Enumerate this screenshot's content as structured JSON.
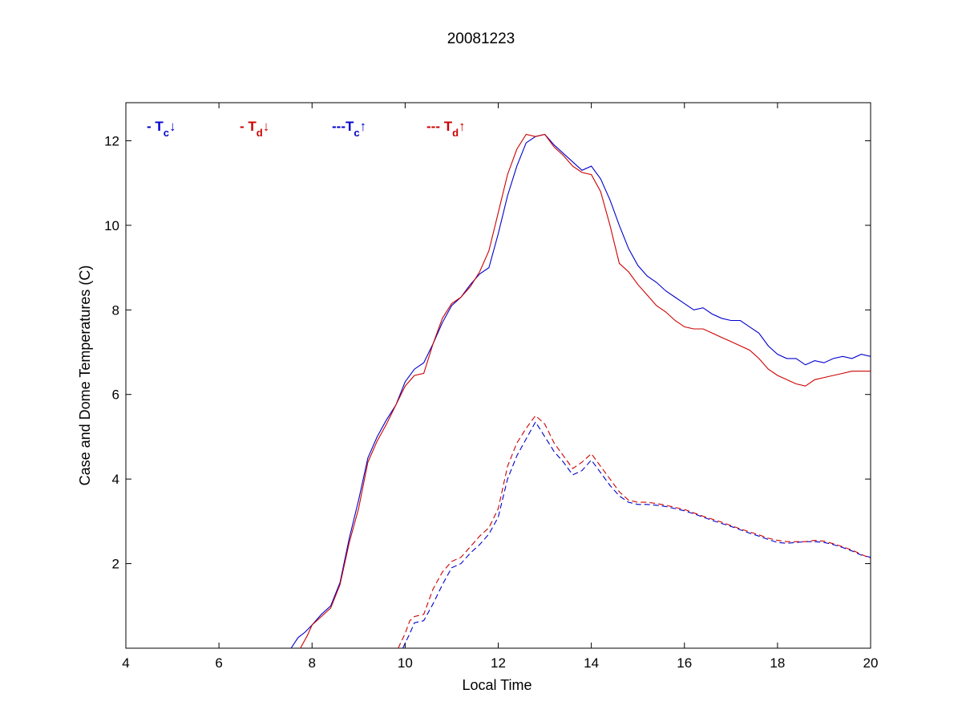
{
  "chart_data": {
    "type": "line",
    "title": "20081223",
    "xlabel": "Local Time",
    "ylabel": "Case and Dome Temperatures (C)",
    "xlim": [
      4,
      20
    ],
    "ylim": [
      0,
      12.9
    ],
    "xticks": [
      4,
      6,
      8,
      10,
      12,
      14,
      16,
      18,
      20
    ],
    "yticks": [
      2,
      4,
      6,
      8,
      10,
      12
    ],
    "grid": false,
    "legend_placement": "top-left (inside plot, horizontal)",
    "legend": [
      {
        "prefix": "- T",
        "sub": "c",
        "arrow": "↓",
        "color": "#0000cc"
      },
      {
        "prefix": "- T",
        "sub": "d",
        "arrow": "↓",
        "color": "#cc0000"
      },
      {
        "prefix": "---T",
        "sub": "c",
        "arrow": "↑",
        "color": "#0000cc"
      },
      {
        "prefix": "--- T",
        "sub": "d",
        "arrow": "↑",
        "color": "#cc0000"
      }
    ],
    "series": [
      {
        "color": "#0000cc",
        "dash": false,
        "x": [
          7.55,
          7.7,
          7.85,
          8.0,
          8.2,
          8.4,
          8.6,
          8.8,
          9.0,
          9.2,
          9.4,
          9.6,
          9.8,
          10.0,
          10.2,
          10.4,
          10.6,
          10.8,
          11.0,
          11.2,
          11.4,
          11.6,
          11.8,
          12.0,
          12.2,
          12.4,
          12.6,
          12.8,
          13.0,
          13.2,
          13.4,
          13.6,
          13.8,
          14.0,
          14.2,
          14.4,
          14.6,
          14.8,
          15.0,
          15.2,
          15.4,
          15.6,
          15.8,
          16.0,
          16.2,
          16.4,
          16.6,
          16.8,
          17.0,
          17.2,
          17.4,
          17.6,
          17.8,
          18.0,
          18.2,
          18.4,
          18.6,
          18.8,
          19.0,
          19.2,
          19.4,
          19.6,
          19.8,
          20.0
        ],
        "y": [
          0.0,
          0.25,
          0.38,
          0.55,
          0.8,
          1.0,
          1.55,
          2.6,
          3.5,
          4.5,
          5.0,
          5.4,
          5.75,
          6.3,
          6.6,
          6.75,
          7.2,
          7.7,
          8.1,
          8.3,
          8.6,
          8.85,
          9.0,
          9.8,
          10.7,
          11.4,
          11.95,
          12.1,
          12.15,
          11.9,
          11.7,
          11.5,
          11.3,
          11.4,
          11.1,
          10.6,
          10.0,
          9.45,
          9.05,
          8.8,
          8.65,
          8.45,
          8.3,
          8.15,
          8.0,
          8.05,
          7.9,
          7.8,
          7.75,
          7.75,
          7.6,
          7.45,
          7.15,
          6.95,
          6.85,
          6.85,
          6.7,
          6.8,
          6.75,
          6.85,
          6.9,
          6.85,
          6.95,
          6.9
        ]
      },
      {
        "color": "#cc0000",
        "dash": false,
        "x": [
          7.75,
          7.9,
          8.0,
          8.2,
          8.4,
          8.6,
          8.8,
          9.0,
          9.2,
          9.4,
          9.6,
          9.8,
          10.0,
          10.2,
          10.4,
          10.6,
          10.8,
          11.0,
          11.2,
          11.4,
          11.6,
          11.8,
          12.0,
          12.2,
          12.4,
          12.6,
          12.8,
          13.0,
          13.2,
          13.4,
          13.6,
          13.8,
          14.0,
          14.2,
          14.4,
          14.6,
          14.8,
          15.0,
          15.2,
          15.4,
          15.6,
          15.8,
          16.0,
          16.2,
          16.4,
          16.6,
          16.8,
          17.0,
          17.2,
          17.4,
          17.6,
          17.8,
          18.0,
          18.2,
          18.4,
          18.6,
          18.8,
          19.0,
          19.2,
          19.4,
          19.6,
          19.8,
          20.0
        ],
        "y": [
          0.0,
          0.3,
          0.55,
          0.75,
          0.95,
          1.5,
          2.5,
          3.3,
          4.4,
          4.9,
          5.3,
          5.75,
          6.2,
          6.45,
          6.5,
          7.2,
          7.8,
          8.15,
          8.3,
          8.55,
          8.9,
          9.4,
          10.3,
          11.2,
          11.8,
          12.15,
          12.1,
          12.15,
          11.85,
          11.65,
          11.4,
          11.25,
          11.2,
          10.8,
          10.0,
          9.1,
          8.9,
          8.6,
          8.35,
          8.1,
          7.95,
          7.75,
          7.6,
          7.55,
          7.55,
          7.45,
          7.35,
          7.25,
          7.15,
          7.05,
          6.85,
          6.6,
          6.45,
          6.35,
          6.25,
          6.2,
          6.35,
          6.4,
          6.45,
          6.5,
          6.55,
          6.55,
          6.55
        ]
      },
      {
        "color": "#0000cc",
        "dash": true,
        "x": [
          9.95,
          10.1,
          10.2,
          10.4,
          10.6,
          10.8,
          11.0,
          11.2,
          11.4,
          11.6,
          11.8,
          12.0,
          12.2,
          12.4,
          12.6,
          12.8,
          13.0,
          13.2,
          13.4,
          13.6,
          13.8,
          14.0,
          14.2,
          14.4,
          14.6,
          14.8,
          15.0,
          15.2,
          15.4,
          15.6,
          15.8,
          16.0,
          16.2,
          16.4,
          16.6,
          16.8,
          17.0,
          17.2,
          17.4,
          17.6,
          17.8,
          18.0,
          18.2,
          18.4,
          18.6,
          18.8,
          19.0,
          19.2,
          19.4,
          19.6,
          19.8,
          20.0
        ],
        "y": [
          0.0,
          0.35,
          0.6,
          0.65,
          1.05,
          1.5,
          1.9,
          2.0,
          2.25,
          2.45,
          2.7,
          3.1,
          4.0,
          4.55,
          4.95,
          5.35,
          5.0,
          4.65,
          4.4,
          4.1,
          4.2,
          4.45,
          4.15,
          3.85,
          3.6,
          3.45,
          3.4,
          3.4,
          3.38,
          3.35,
          3.3,
          3.25,
          3.18,
          3.1,
          3.02,
          2.95,
          2.88,
          2.8,
          2.72,
          2.65,
          2.57,
          2.5,
          2.48,
          2.5,
          2.52,
          2.52,
          2.5,
          2.45,
          2.38,
          2.3,
          2.2,
          2.15
        ]
      },
      {
        "color": "#cc0000",
        "dash": true,
        "x": [
          9.85,
          10.0,
          10.1,
          10.2,
          10.4,
          10.6,
          10.8,
          11.0,
          11.2,
          11.4,
          11.6,
          11.8,
          12.0,
          12.2,
          12.4,
          12.6,
          12.8,
          13.0,
          13.2,
          13.4,
          13.6,
          13.8,
          14.0,
          14.2,
          14.4,
          14.6,
          14.8,
          15.0,
          15.2,
          15.4,
          15.6,
          15.8,
          16.0,
          16.2,
          16.4,
          16.6,
          16.8,
          17.0,
          17.2,
          17.4,
          17.6,
          17.8,
          18.0,
          18.2,
          18.4,
          18.6,
          18.8,
          19.0,
          19.2,
          19.4,
          19.6,
          19.8,
          20.0
        ],
        "y": [
          0.0,
          0.35,
          0.65,
          0.75,
          0.8,
          1.4,
          1.8,
          2.05,
          2.15,
          2.4,
          2.65,
          2.85,
          3.3,
          4.3,
          4.85,
          5.2,
          5.5,
          5.3,
          4.85,
          4.55,
          4.25,
          4.4,
          4.6,
          4.3,
          4.0,
          3.7,
          3.5,
          3.45,
          3.45,
          3.42,
          3.38,
          3.33,
          3.28,
          3.2,
          3.12,
          3.05,
          2.98,
          2.9,
          2.82,
          2.75,
          2.68,
          2.6,
          2.55,
          2.52,
          2.52,
          2.52,
          2.55,
          2.53,
          2.47,
          2.4,
          2.32,
          2.22,
          2.12
        ]
      }
    ]
  }
}
